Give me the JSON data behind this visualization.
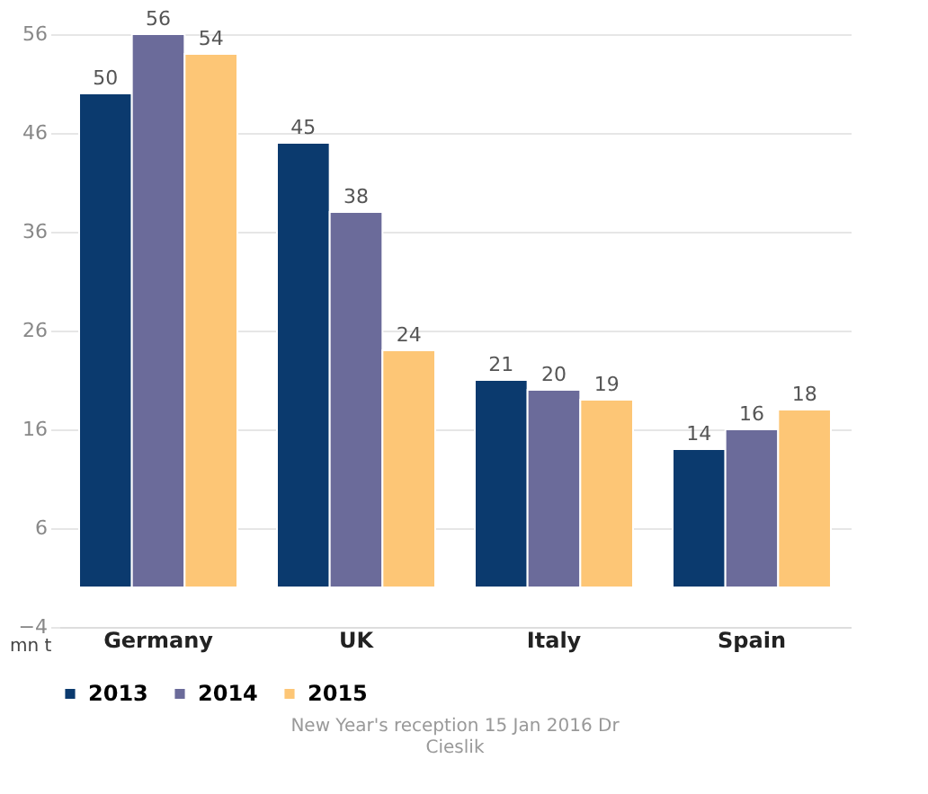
{
  "chart_data": {
    "type": "bar",
    "categories": [
      "Germany",
      "UK",
      "Italy",
      "Spain"
    ],
    "series": [
      {
        "name": "2013",
        "color": "#0b3a6e",
        "values": [
          50,
          45,
          21,
          14
        ]
      },
      {
        "name": "2014",
        "color": "#6b6b9a",
        "values": [
          56,
          38,
          20,
          16
        ]
      },
      {
        "name": "2015",
        "color": "#fdc676",
        "values": [
          54,
          24,
          19,
          18
        ]
      }
    ],
    "ylabel": "mn t",
    "ylim": [
      -4,
      56
    ],
    "yticks": [
      -4,
      6,
      16,
      26,
      36,
      46,
      56
    ],
    "grid": "y",
    "legend": "bottom",
    "data_labels": true,
    "annotations": [
      "New Year's reception 15 Jan 2016 Dr Cieslik"
    ]
  }
}
